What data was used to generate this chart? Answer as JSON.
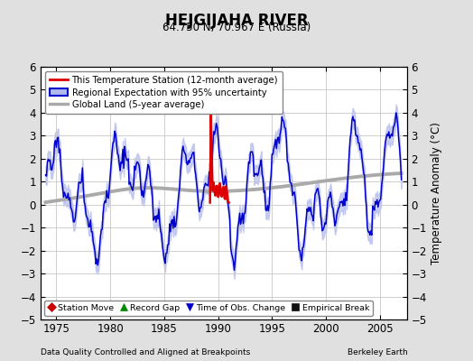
{
  "title": "HEJGIJAHA RIVER",
  "subtitle": "64.750 N, 70.967 E (Russia)",
  "ylabel": "Temperature Anomaly (°C)",
  "xlabel_bottom_left": "Data Quality Controlled and Aligned at Breakpoints",
  "xlabel_bottom_right": "Berkeley Earth",
  "xlim": [
    1973.5,
    2007.5
  ],
  "ylim": [
    -5,
    6
  ],
  "yticks": [
    -5,
    -4,
    -3,
    -2,
    -1,
    0,
    1,
    2,
    3,
    4,
    5,
    6
  ],
  "xticks": [
    1975,
    1980,
    1985,
    1990,
    1995,
    2000,
    2005
  ],
  "bg_color": "#e0e0e0",
  "plot_bg_color": "#ffffff",
  "grid_color": "#c8c8c8",
  "blue_line_color": "#0000cc",
  "blue_fill_color": "#b0b8ee",
  "red_line_color": "#dd0000",
  "gray_line_color": "#aaaaaa",
  "legend_entries": [
    "This Temperature Station (12-month average)",
    "Regional Expectation with 95% uncertainty",
    "Global Land (5-year average)"
  ],
  "bottom_legend": [
    {
      "label": "Station Move",
      "color": "#cc0000",
      "marker": "D"
    },
    {
      "label": "Record Gap",
      "color": "#008800",
      "marker": "^"
    },
    {
      "label": "Time of Obs. Change",
      "color": "#0000cc",
      "marker": "v"
    },
    {
      "label": "Empirical Break",
      "color": "#111111",
      "marker": "s"
    }
  ]
}
